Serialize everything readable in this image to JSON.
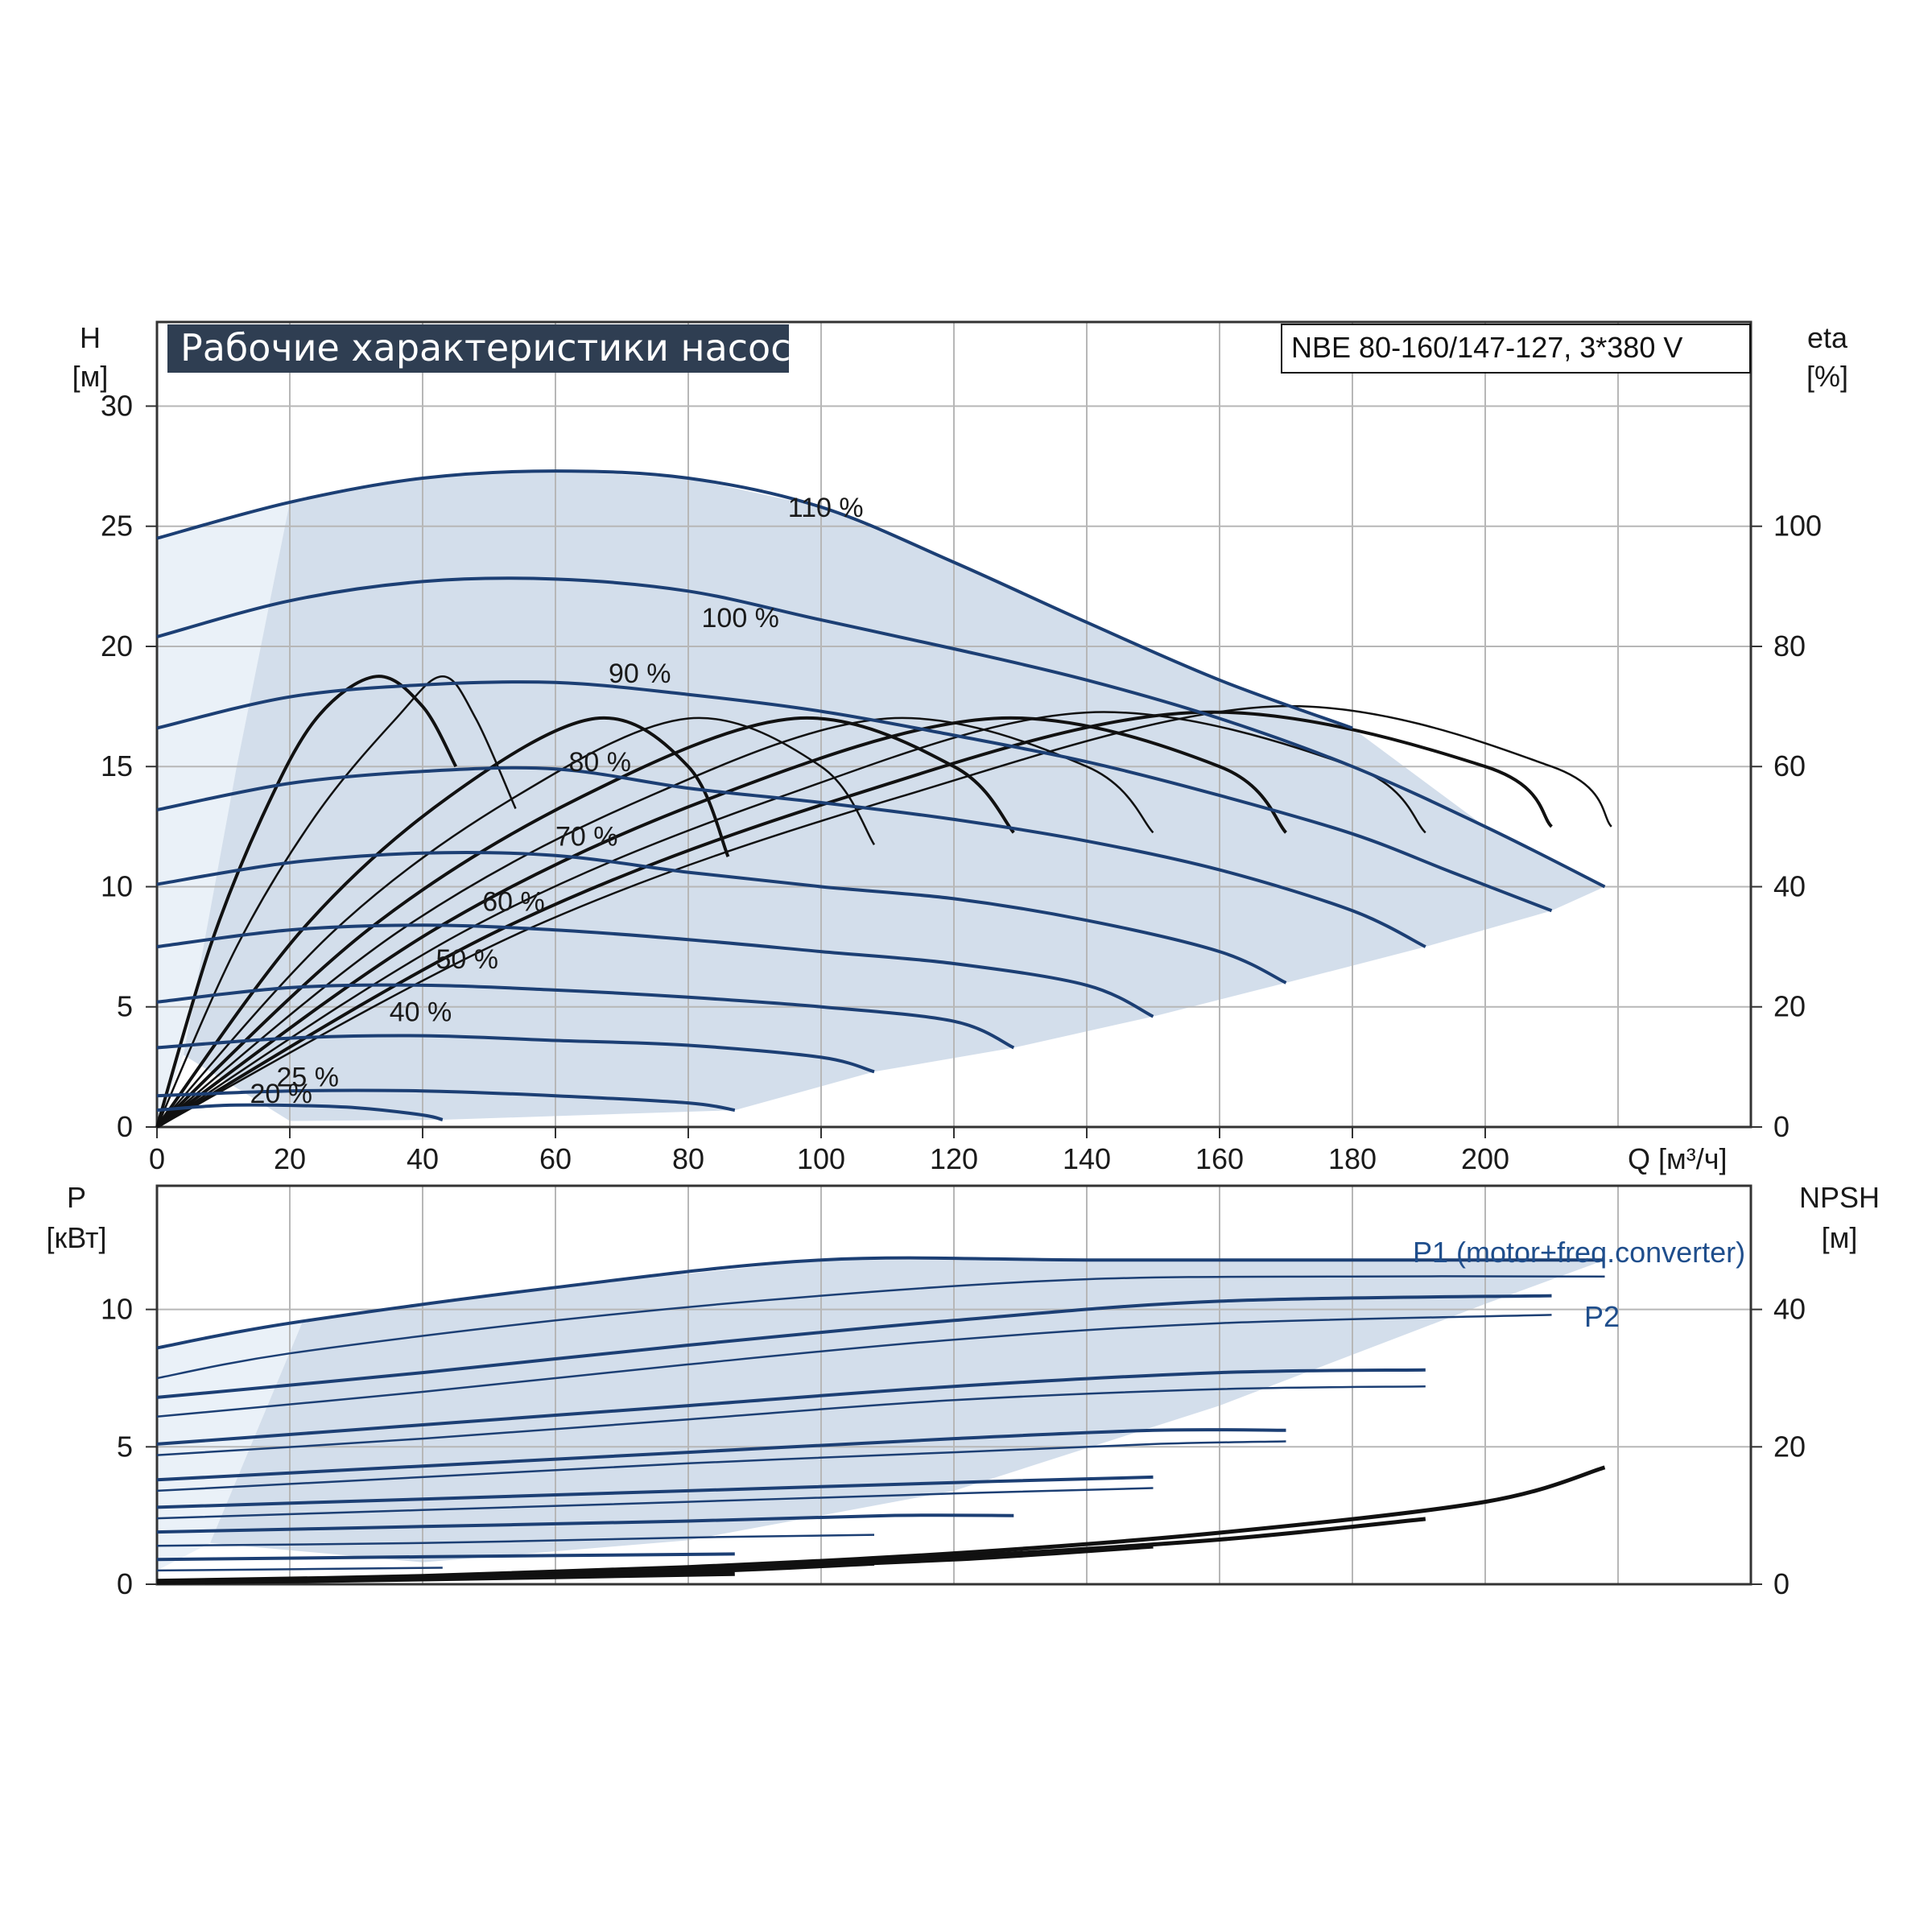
{
  "title": "Рабочие характеристики насоса",
  "model": "NBE 80-160/147-127, 3*380 V",
  "colors": {
    "curve": "#1c3f74",
    "eff": "#111111",
    "fill": "#d3deeb",
    "fill_light": "#eaf1f8",
    "grid": "#b7b7b7",
    "title_bg": "#2f3e52"
  },
  "chart_data": [
    {
      "type": "line",
      "title": "Рабочие характеристики насоса",
      "xlabel": "Q [м³/ч]",
      "ylabel_line1": "H",
      "ylabel_line2": "[м]",
      "y2label_line1": "eta",
      "y2label_line2": "[%]",
      "xlim": [
        0,
        240
      ],
      "ylim": [
        0,
        33.5
      ],
      "y2lim": [
        0,
        134
      ],
      "xticks": [
        "0",
        "20",
        "40",
        "60",
        "80",
        "100",
        "120",
        "140",
        "160",
        "180",
        "200"
      ],
      "yticks": [
        "0",
        "5",
        "10",
        "15",
        "20",
        "25",
        "30"
      ],
      "y2ticks": [
        "0",
        "20",
        "40",
        "60",
        "80",
        "100"
      ],
      "grid": true,
      "head_series": [
        {
          "name": "110 %",
          "x": [
            0,
            20,
            40,
            60,
            80,
            100,
            120,
            140,
            160,
            180
          ],
          "y": [
            24.5,
            26.0,
            27.0,
            27.3,
            27.0,
            25.8,
            23.5,
            21.0,
            18.6,
            16.6
          ]
        },
        {
          "name": "100 %",
          "x": [
            0,
            20,
            40,
            60,
            80,
            100,
            120,
            140,
            160,
            180,
            200,
            218
          ],
          "y": [
            20.4,
            21.9,
            22.7,
            22.8,
            22.3,
            21.1,
            19.9,
            18.6,
            17.0,
            15.0,
            12.5,
            10.0
          ]
        },
        {
          "name": "90 %",
          "x": [
            0,
            20,
            40,
            60,
            80,
            100,
            120,
            140,
            160,
            180,
            195,
            210
          ],
          "y": [
            16.6,
            17.9,
            18.4,
            18.5,
            18.0,
            17.3,
            16.3,
            15.2,
            13.8,
            12.2,
            10.6,
            9.0
          ]
        },
        {
          "name": "80 %",
          "x": [
            0,
            20,
            40,
            60,
            80,
            100,
            120,
            140,
            160,
            180,
            191
          ],
          "y": [
            13.2,
            14.3,
            14.8,
            14.9,
            14.1,
            13.5,
            12.8,
            11.9,
            10.7,
            9.0,
            7.5
          ]
        },
        {
          "name": "70 %",
          "x": [
            0,
            20,
            40,
            60,
            80,
            100,
            120,
            140,
            160,
            170
          ],
          "y": [
            10.1,
            11.0,
            11.4,
            11.3,
            10.6,
            10.0,
            9.5,
            8.6,
            7.3,
            6.0
          ]
        },
        {
          "name": "60 %",
          "x": [
            0,
            20,
            40,
            60,
            80,
            100,
            120,
            140,
            150
          ],
          "y": [
            7.5,
            8.2,
            8.4,
            8.2,
            7.8,
            7.3,
            6.8,
            5.9,
            4.6
          ]
        },
        {
          "name": "50 %",
          "x": [
            0,
            20,
            40,
            60,
            80,
            100,
            120,
            129
          ],
          "y": [
            5.2,
            5.8,
            5.9,
            5.7,
            5.4,
            5.0,
            4.4,
            3.3
          ]
        },
        {
          "name": "40 %",
          "x": [
            0,
            20,
            40,
            60,
            80,
            100,
            108
          ],
          "y": [
            3.3,
            3.7,
            3.8,
            3.6,
            3.4,
            2.9,
            2.3
          ]
        },
        {
          "name": "25 %",
          "x": [
            0,
            20,
            40,
            60,
            80,
            87
          ],
          "y": [
            1.3,
            1.5,
            1.5,
            1.3,
            1.0,
            0.7
          ]
        },
        {
          "name": "20 %",
          "x": [
            0,
            10,
            20,
            30,
            40,
            43
          ],
          "y": [
            0.7,
            0.9,
            0.9,
            0.8,
            0.5,
            0.3
          ]
        }
      ],
      "eta_series": [
        {
          "x": [
            0,
            8,
            16,
            24,
            33,
            40,
            45
          ],
          "y": [
            0,
            30,
            52,
            68,
            75,
            70,
            60
          ]
        },
        {
          "x": [
            0,
            12,
            24,
            36,
            43,
            48,
            54
          ],
          "y": [
            0,
            30,
            52,
            68,
            75,
            68,
            53
          ]
        },
        {
          "x": [
            0,
            22,
            44,
            66,
            80,
            86
          ],
          "y": [
            0,
            33,
            55,
            68,
            60,
            45
          ]
        },
        {
          "x": [
            0,
            27,
            54,
            80,
            100,
            108
          ],
          "y": [
            0,
            33,
            55,
            68,
            60,
            47
          ]
        },
        {
          "x": [
            0,
            32,
            64,
            96,
            120,
            129
          ],
          "y": [
            0,
            33,
            55,
            68,
            60,
            49
          ]
        },
        {
          "x": [
            0,
            37,
            74,
            110,
            140,
            150
          ],
          "y": [
            0,
            33,
            55,
            68,
            60,
            49
          ]
        },
        {
          "x": [
            0,
            42,
            84,
            126,
            160,
            170
          ],
          "y": [
            0,
            33,
            55,
            68,
            60,
            49
          ]
        },
        {
          "x": [
            0,
            47,
            94,
            140,
            180,
            191
          ],
          "y": [
            0,
            33,
            55,
            69,
            60,
            49
          ]
        },
        {
          "x": [
            0,
            52,
            104,
            156,
            200,
            210
          ],
          "y": [
            0,
            33,
            55,
            69,
            60,
            50
          ]
        },
        {
          "x": [
            0,
            56,
            112,
            168,
            210,
            219
          ],
          "y": [
            0,
            33,
            55,
            70,
            60,
            50
          ]
        }
      ]
    },
    {
      "type": "line",
      "ylabel_line1": "P",
      "ylabel_line2": "[кВт]",
      "y2label_line1": "NPSH",
      "y2label_line2": "[м]",
      "xlim": [
        0,
        240
      ],
      "ylim": [
        0,
        14.5
      ],
      "y2lim": [
        0,
        58
      ],
      "yticks": [
        "0",
        "5",
        "10"
      ],
      "y2ticks": [
        "0",
        "20",
        "40"
      ],
      "grid": true,
      "legend": [
        "P1 (motor+freq.converter)",
        "P2"
      ],
      "power_series": [
        {
          "name": "P1",
          "x": [
            0,
            20,
            60,
            100,
            140,
            180,
            218
          ],
          "y": [
            8.6,
            9.5,
            10.8,
            11.8,
            11.8,
            11.8,
            11.8
          ]
        },
        {
          "name": "P2",
          "x": [
            0,
            20,
            60,
            100,
            140,
            180,
            218
          ],
          "y": [
            7.5,
            8.4,
            9.6,
            10.5,
            11.1,
            11.2,
            11.2
          ]
        },
        {
          "x": [
            0,
            40,
            80,
            120,
            160,
            210
          ],
          "y": [
            6.8,
            7.7,
            8.7,
            9.6,
            10.3,
            10.5
          ]
        },
        {
          "x": [
            0,
            40,
            80,
            120,
            160,
            210
          ],
          "y": [
            6.1,
            7.0,
            8.0,
            8.9,
            9.5,
            9.8
          ]
        },
        {
          "x": [
            0,
            40,
            80,
            120,
            160,
            191
          ],
          "y": [
            5.1,
            5.8,
            6.5,
            7.2,
            7.7,
            7.8
          ]
        },
        {
          "x": [
            0,
            40,
            80,
            120,
            160,
            191
          ],
          "y": [
            4.7,
            5.3,
            6.0,
            6.7,
            7.1,
            7.2
          ]
        },
        {
          "x": [
            0,
            40,
            80,
            120,
            150,
            170
          ],
          "y": [
            3.8,
            4.3,
            4.8,
            5.3,
            5.6,
            5.6
          ]
        },
        {
          "x": [
            0,
            40,
            80,
            120,
            150,
            170
          ],
          "y": [
            3.4,
            3.9,
            4.4,
            4.8,
            5.1,
            5.2
          ]
        },
        {
          "x": [
            0,
            40,
            80,
            120,
            150
          ],
          "y": [
            2.8,
            3.1,
            3.4,
            3.7,
            3.9
          ]
        },
        {
          "x": [
            0,
            40,
            80,
            120,
            150
          ],
          "y": [
            2.4,
            2.7,
            3.0,
            3.3,
            3.5
          ]
        },
        {
          "x": [
            0,
            40,
            80,
            110,
            129
          ],
          "y": [
            1.9,
            2.1,
            2.3,
            2.5,
            2.5
          ]
        },
        {
          "x": [
            0,
            40,
            80,
            108
          ],
          "y": [
            1.4,
            1.5,
            1.7,
            1.8
          ]
        },
        {
          "x": [
            0,
            40,
            87
          ],
          "y": [
            0.9,
            1.0,
            1.1
          ]
        },
        {
          "x": [
            0,
            43
          ],
          "y": [
            0.5,
            0.6
          ]
        }
      ],
      "npsh_series": [
        {
          "x": [
            0,
            40,
            80,
            120,
            160,
            200,
            218
          ],
          "y": [
            0.5,
            1.2,
            2.5,
            4.5,
            7.5,
            12.0,
            17.0
          ]
        },
        {
          "x": [
            0,
            40,
            80,
            120,
            160,
            191
          ],
          "y": [
            0.4,
            1.0,
            2.2,
            4.0,
            6.5,
            9.5
          ]
        },
        {
          "x": [
            0,
            40,
            80,
            120,
            150
          ],
          "y": [
            0.3,
            0.9,
            2.0,
            3.6,
            5.5
          ]
        },
        {
          "x": [
            0,
            40,
            80,
            108
          ],
          "y": [
            0.3,
            0.8,
            1.8,
            3.0
          ]
        },
        {
          "x": [
            0,
            40,
            87
          ],
          "y": [
            0.2,
            0.7,
            1.5
          ]
        }
      ]
    }
  ]
}
